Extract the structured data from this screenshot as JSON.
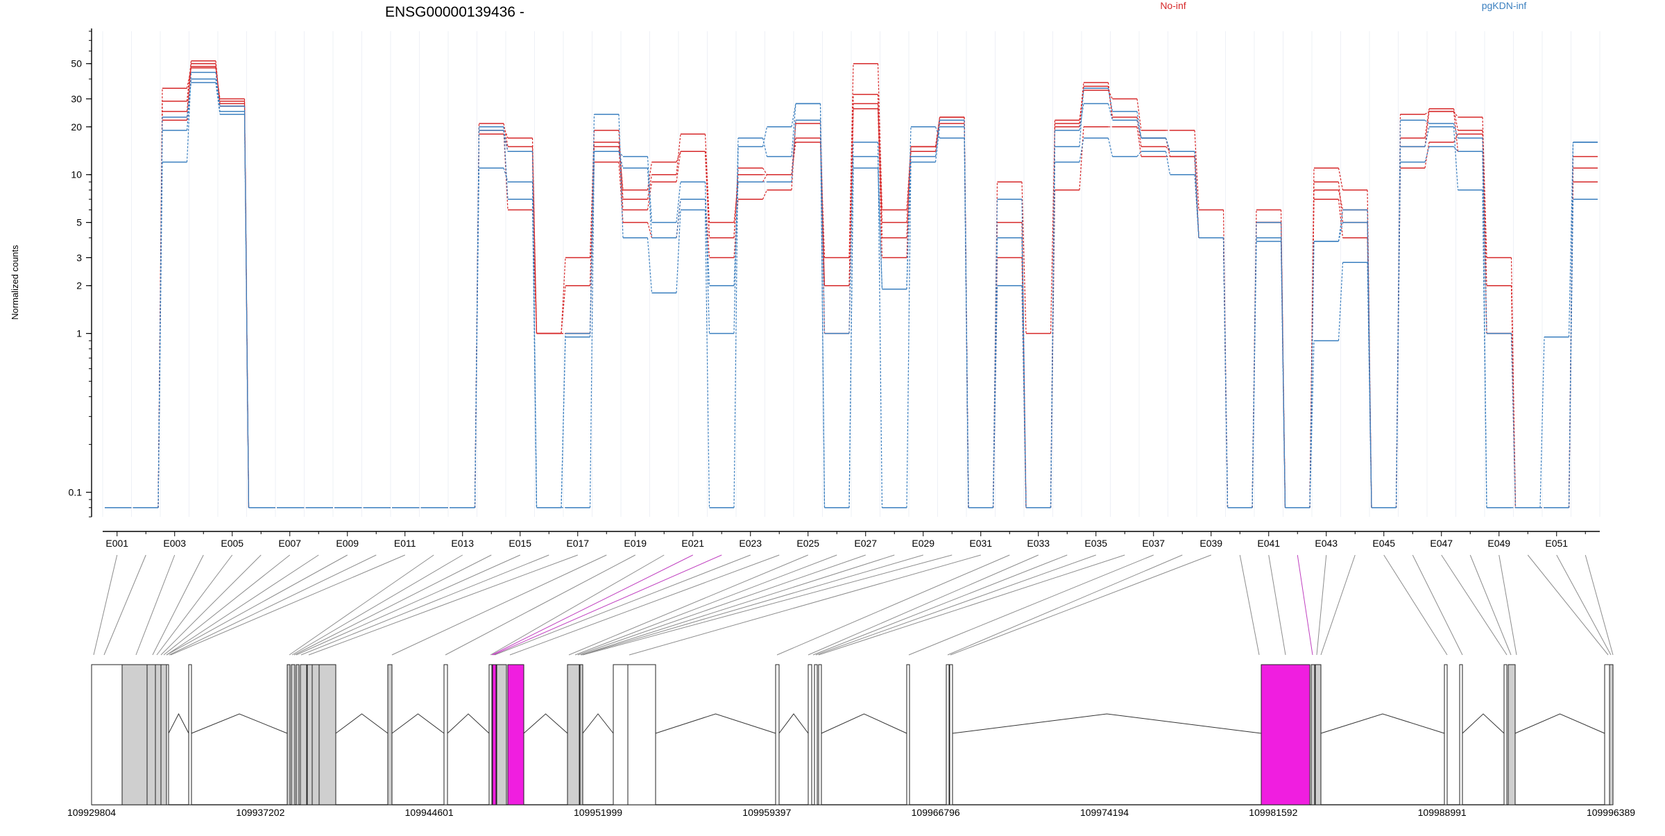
{
  "chart_data": {
    "type": "line",
    "title": "ENSG00000139436 -",
    "ylabel": "Normalized counts",
    "yscale": "log",
    "ylim": [
      0.07,
      80
    ],
    "y_ticks": [
      0.1,
      1,
      2,
      3,
      5,
      10,
      20,
      30,
      50
    ],
    "y_tick_labels": [
      "0.1",
      "1",
      "2",
      "3",
      "5",
      "10",
      "20",
      "30",
      "50"
    ],
    "floor_value": 0.08,
    "x_categories": [
      "E001",
      "E002",
      "E003",
      "E004",
      "E005",
      "E006",
      "E007",
      "E008",
      "E009",
      "E010",
      "E011",
      "E012",
      "E013",
      "E014",
      "E015",
      "E016",
      "E017",
      "E018",
      "E019",
      "E020",
      "E021",
      "E022",
      "E023",
      "E024",
      "E025",
      "E026",
      "E027",
      "E028",
      "E029",
      "E030",
      "E031",
      "E032",
      "E033",
      "E034",
      "E035",
      "E036",
      "E037",
      "E038",
      "E039",
      "E040",
      "E041",
      "E042",
      "E043",
      "E044",
      "E045",
      "E046",
      "E047",
      "E048",
      "E049",
      "E050",
      "E051",
      "E052"
    ],
    "x_tick_labels": [
      "E001",
      "E003",
      "E005",
      "E007",
      "E009",
      "E011",
      "E013",
      "E015",
      "E017",
      "E019",
      "E021",
      "E023",
      "E025",
      "E027",
      "E029",
      "E031",
      "E033",
      "E035",
      "E037",
      "E039",
      "E041",
      "E043",
      "E045",
      "E047",
      "E049",
      "E051"
    ],
    "legend": {
      "placement": "top-right",
      "entries": [
        {
          "name": "No-inf",
          "color": "#d62728"
        },
        {
          "name": "pgKDN-inf",
          "color": "#3a7fbf"
        }
      ]
    },
    "group_colors": {
      "No-inf": "#d62728",
      "pgKDN-inf": "#3a7fbf"
    },
    "series": [
      {
        "name": "No-inf",
        "values": [
          0.08,
          0.08,
          29,
          52,
          27,
          0.08,
          0.08,
          0.08,
          0.08,
          0.08,
          0.08,
          0.08,
          0.08,
          20,
          17,
          1,
          2,
          15,
          6,
          9,
          14,
          4,
          11,
          10,
          21,
          2,
          28,
          5,
          15,
          23,
          0.08,
          3,
          0.08,
          20,
          36,
          23,
          15,
          14,
          4,
          0.08,
          5,
          0.08,
          8,
          6,
          0.08,
          15,
          25,
          14,
          1,
          0.08,
          0.08,
          11
        ]
      },
      {
        "name": "No-inf",
        "values": [
          0.08,
          0.08,
          35,
          47,
          30,
          0.08,
          0.08,
          0.08,
          0.08,
          0.08,
          0.08,
          0.08,
          0.08,
          21,
          15,
          1,
          3,
          19,
          7,
          10,
          18,
          5,
          9,
          10,
          17,
          3,
          50,
          6,
          15,
          21,
          0.08,
          5,
          0.08,
          22,
          34,
          30,
          19,
          19,
          6,
          0.08,
          6,
          0.08,
          11,
          8,
          0.08,
          24,
          25,
          23,
          3,
          0.08,
          0.08,
          9
        ]
      },
      {
        "name": "No-inf",
        "values": [
          0.08,
          0.08,
          22,
          50,
          28,
          0.08,
          0.08,
          0.08,
          0.08,
          0.08,
          0.08,
          0.08,
          0.08,
          19,
          6,
          1,
          1,
          12,
          5,
          4,
          7,
          3,
          7,
          8,
          22,
          1,
          26,
          3,
          15,
          22,
          0.08,
          2,
          0.08,
          8,
          20,
          20,
          13,
          13,
          4,
          0.08,
          5,
          0.08,
          7,
          4,
          0.08,
          11,
          16,
          18,
          2,
          0.08,
          0.08,
          11
        ]
      },
      {
        "name": "No-inf",
        "values": [
          0.08,
          0.08,
          25,
          48,
          29,
          0.08,
          0.08,
          0.08,
          0.08,
          0.08,
          0.08,
          0.08,
          0.08,
          18,
          14,
          1,
          1,
          16,
          8,
          12,
          14,
          4,
          10,
          10,
          16,
          2,
          32,
          4,
          14,
          23,
          0.08,
          9,
          1,
          21,
          38,
          22,
          17,
          13,
          4,
          0.08,
          5,
          0.08,
          9,
          5,
          0.08,
          17,
          26,
          19,
          1,
          0.08,
          0.08,
          13
        ]
      },
      {
        "name": "pgKDN-inf",
        "values": [
          0.08,
          0.08,
          19,
          40,
          25,
          0.08,
          0.08,
          0.08,
          0.08,
          0.08,
          0.08,
          0.08,
          0.08,
          19,
          14,
          0.08,
          1,
          14,
          11,
          4,
          7,
          2,
          9,
          9,
          22,
          0.08,
          13,
          1.9,
          13,
          22,
          0.08,
          2,
          0.08,
          19,
          28,
          22,
          17,
          14,
          4,
          0.08,
          5,
          0.08,
          3.8,
          6,
          0.08,
          22,
          21,
          17,
          1,
          0.08,
          0.08,
          16
        ]
      },
      {
        "name": "pgKDN-inf",
        "values": [
          0.08,
          0.08,
          12,
          44,
          27,
          0.08,
          0.08,
          0.08,
          0.08,
          0.08,
          0.08,
          0.08,
          0.08,
          11,
          9,
          0.08,
          0.08,
          14,
          13,
          5,
          9,
          1,
          17,
          13,
          28,
          1,
          16,
          0.08,
          12,
          20,
          0.08,
          7,
          0.08,
          15,
          35,
          25,
          17,
          14,
          4,
          0.08,
          4,
          0.08,
          0.9,
          2.8,
          0.08,
          15,
          20,
          8,
          0.08,
          0.08,
          0.95,
          16
        ]
      },
      {
        "name": "pgKDN-inf",
        "values": [
          0.08,
          0.08,
          23,
          38,
          24,
          0.08,
          0.08,
          0.08,
          0.08,
          0.08,
          0.08,
          0.08,
          0.08,
          20,
          7,
          0.08,
          0.95,
          24,
          4,
          1.8,
          6,
          0.08,
          15,
          20,
          28,
          0.08,
          11,
          1.9,
          20,
          17,
          0.08,
          4,
          0.08,
          12,
          17,
          13,
          14,
          10,
          4,
          0.08,
          3.8,
          0.08,
          3.8,
          5,
          0.08,
          12,
          15,
          14,
          0.08,
          0.08,
          0.08,
          7
        ]
      }
    ],
    "gene_model": {
      "coordinate_labels": [
        "109929804",
        "109937202",
        "109944601",
        "109951999",
        "109959397",
        "109966796",
        "109974194",
        "109981592",
        "109988991",
        "109996389"
      ],
      "exon_fill_colors": {
        "tested": "#cfcfcf",
        "untested": "#ffffff",
        "highlighted": "#f01ee0"
      }
    }
  }
}
